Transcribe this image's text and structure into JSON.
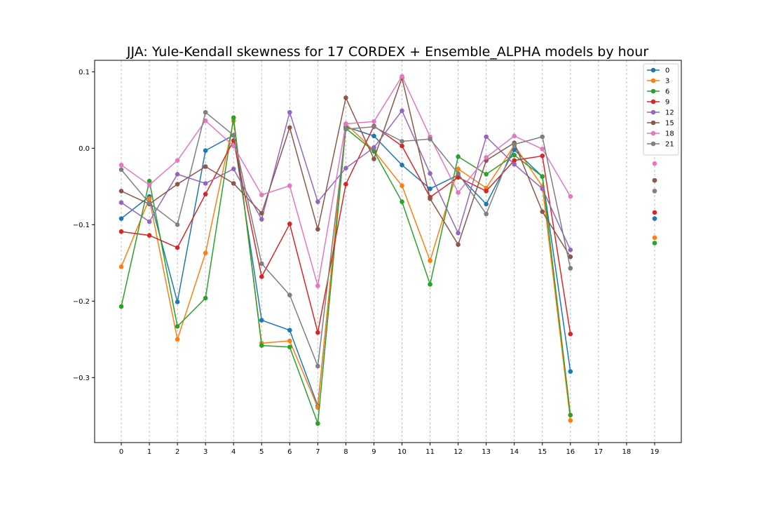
{
  "chart_data": {
    "type": "line",
    "title": "JJA: Yule-Kendall skewness for 17 CORDEX + Ensemble_ALPHA models by hour",
    "xlabel": "",
    "ylabel": "",
    "x": [
      0,
      1,
      2,
      3,
      4,
      5,
      6,
      7,
      8,
      9,
      10,
      11,
      12,
      13,
      14,
      15,
      16,
      17,
      18,
      19
    ],
    "x_tick_labels": [
      "0",
      "1",
      "2",
      "3",
      "4",
      "5",
      "6",
      "7",
      "8",
      "9",
      "10",
      "11",
      "12",
      "13",
      "14",
      "15",
      "16",
      "17",
      "18",
      "19"
    ],
    "xlim": [
      -0.95,
      19.95
    ],
    "ylim": [
      -0.385,
      0.115
    ],
    "y_ticks": [
      0.1,
      0.0,
      -0.1,
      -0.2,
      -0.3
    ],
    "y_tick_labels": [
      "0.1",
      "0.0",
      "−0.1",
      "−0.2",
      "−0.3"
    ],
    "grid": "vertical-dashed",
    "legend_position": "top-right",
    "series": [
      {
        "name": "0",
        "color": "#1f77b4",
        "values": [
          -0.092,
          -0.063,
          -0.201,
          -0.003,
          0.017,
          -0.225,
          -0.238,
          -0.337,
          0.028,
          0.016,
          -0.022,
          -0.053,
          -0.035,
          -0.073,
          -0.002,
          -0.037,
          -0.292,
          null,
          null,
          -0.092
        ]
      },
      {
        "name": "3",
        "color": "#ff7f0e",
        "values": [
          -0.155,
          -0.066,
          -0.25,
          -0.137,
          0.036,
          -0.255,
          -0.252,
          -0.339,
          0.032,
          -0.003,
          -0.049,
          -0.147,
          -0.027,
          -0.052,
          0.004,
          -0.05,
          -0.356,
          null,
          null,
          -0.117
        ]
      },
      {
        "name": "6",
        "color": "#2ca02c",
        "values": [
          -0.207,
          -0.043,
          -0.233,
          -0.196,
          0.04,
          -0.258,
          -0.26,
          -0.36,
          0.026,
          -0.004,
          -0.07,
          -0.178,
          -0.011,
          -0.034,
          -0.009,
          -0.037,
          -0.349,
          null,
          null,
          -0.124
        ]
      },
      {
        "name": "9",
        "color": "#d62728",
        "values": [
          -0.109,
          -0.114,
          -0.13,
          -0.06,
          0.01,
          -0.168,
          -0.099,
          -0.241,
          -0.047,
          0.029,
          0.003,
          -0.064,
          -0.038,
          -0.056,
          -0.016,
          -0.01,
          -0.243,
          null,
          null,
          -0.084
        ]
      },
      {
        "name": "12",
        "color": "#9467bd",
        "values": [
          -0.071,
          -0.096,
          -0.034,
          -0.046,
          -0.027,
          -0.093,
          0.047,
          -0.07,
          -0.026,
          0.001,
          0.049,
          -0.033,
          -0.111,
          0.015,
          -0.021,
          -0.053,
          -0.133,
          null,
          null,
          -0.042
        ]
      },
      {
        "name": "15",
        "color": "#8c564b",
        "values": [
          -0.056,
          -0.073,
          -0.047,
          -0.024,
          -0.046,
          -0.085,
          0.027,
          -0.106,
          0.066,
          -0.014,
          0.092,
          -0.066,
          -0.126,
          -0.016,
          0.007,
          -0.083,
          -0.142,
          null,
          null,
          -0.042
        ]
      },
      {
        "name": "18",
        "color": "#e377c2",
        "values": [
          -0.022,
          -0.048,
          -0.016,
          0.036,
          0.003,
          -0.061,
          -0.049,
          -0.18,
          0.032,
          0.035,
          0.094,
          0.015,
          -0.058,
          -0.012,
          0.016,
          -0.001,
          -0.063,
          null,
          null,
          -0.02
        ]
      },
      {
        "name": "21",
        "color": "#7f7f7f",
        "values": [
          -0.028,
          -0.072,
          -0.1,
          0.047,
          0.017,
          -0.151,
          -0.192,
          -0.285,
          0.025,
          0.028,
          0.009,
          0.012,
          -0.033,
          -0.086,
          0.005,
          0.015,
          -0.157,
          null,
          null,
          -0.056
        ]
      }
    ]
  }
}
